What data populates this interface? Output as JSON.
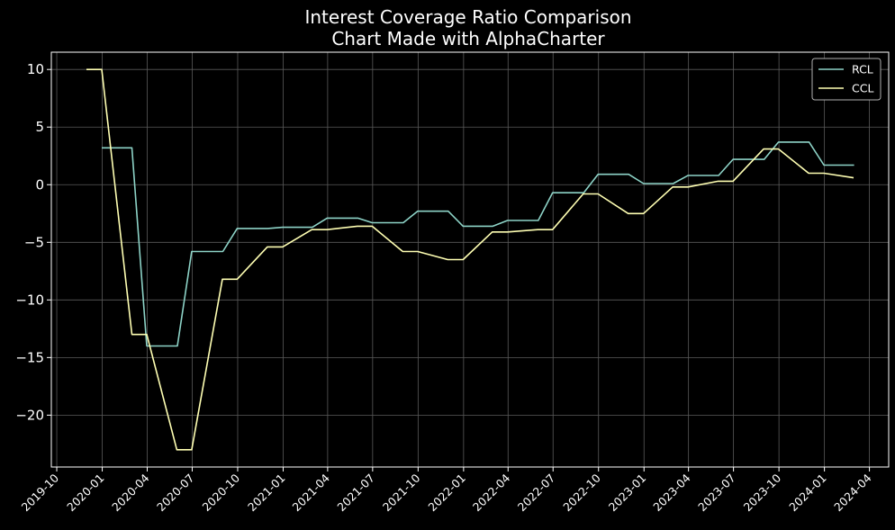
{
  "chart_data": {
    "type": "line",
    "title": "Interest Coverage Ratio Comparison",
    "subtitle": "Chart Made with AlphaCharter",
    "xlabel": "",
    "ylabel": "",
    "x_range": [
      "2019-09-20",
      "2024-05-10"
    ],
    "ylim": [
      -24.5,
      11.5
    ],
    "yticks": [
      10,
      5,
      0,
      -5,
      -10,
      -15,
      -20
    ],
    "ytick_labels": [
      "10",
      "5",
      "0",
      "−5",
      "−10",
      "−15",
      "−20"
    ],
    "xticks": [
      "2019-10-01",
      "2020-01-01",
      "2020-04-01",
      "2020-07-01",
      "2020-10-01",
      "2021-01-01",
      "2021-04-01",
      "2021-07-01",
      "2021-10-01",
      "2022-01-01",
      "2022-04-01",
      "2022-07-01",
      "2022-10-01",
      "2023-01-01",
      "2023-04-01",
      "2023-07-01",
      "2023-10-01",
      "2024-01-01",
      "2024-04-01"
    ],
    "xtick_labels": [
      "2019-10",
      "2020-01",
      "2020-04",
      "2020-07",
      "2020-10",
      "2021-01",
      "2021-04",
      "2021-07",
      "2021-10",
      "2022-01",
      "2022-04",
      "2022-07",
      "2022-10",
      "2023-01",
      "2023-04",
      "2023-07",
      "2023-10",
      "2024-01",
      "2024-04"
    ],
    "grid": true,
    "legend_position": "upper-right",
    "series": [
      {
        "name": "RCL",
        "color": "#8dd3c7",
        "points": [
          [
            "2019-12-31",
            3.2
          ],
          [
            "2020-03-01",
            3.2
          ],
          [
            "2020-03-31",
            -14.0
          ],
          [
            "2020-06-01",
            -14.0
          ],
          [
            "2020-06-30",
            -5.8
          ],
          [
            "2020-09-01",
            -5.8
          ],
          [
            "2020-09-30",
            -3.8
          ],
          [
            "2020-12-01",
            -3.8
          ],
          [
            "2020-12-31",
            -3.7
          ],
          [
            "2021-03-01",
            -3.7
          ],
          [
            "2021-03-31",
            -2.9
          ],
          [
            "2021-06-01",
            -2.9
          ],
          [
            "2021-06-30",
            -3.3
          ],
          [
            "2021-09-01",
            -3.3
          ],
          [
            "2021-09-30",
            -2.3
          ],
          [
            "2021-12-01",
            -2.3
          ],
          [
            "2021-12-31",
            -3.6
          ],
          [
            "2022-03-01",
            -3.6
          ],
          [
            "2022-03-31",
            -3.1
          ],
          [
            "2022-06-01",
            -3.1
          ],
          [
            "2022-06-30",
            -0.7
          ],
          [
            "2022-09-01",
            -0.7
          ],
          [
            "2022-09-30",
            0.9
          ],
          [
            "2022-12-01",
            0.9
          ],
          [
            "2022-12-31",
            0.1
          ],
          [
            "2023-03-01",
            0.1
          ],
          [
            "2023-03-31",
            0.8
          ],
          [
            "2023-06-01",
            0.8
          ],
          [
            "2023-06-30",
            2.2
          ],
          [
            "2023-09-01",
            2.2
          ],
          [
            "2023-09-30",
            3.7
          ],
          [
            "2023-12-01",
            3.7
          ],
          [
            "2023-12-31",
            1.7
          ],
          [
            "2024-03-01",
            1.7
          ]
        ]
      },
      {
        "name": "CCL",
        "color": "#ffffb3",
        "points": [
          [
            "2019-11-30",
            10.0
          ],
          [
            "2019-12-31",
            10.0
          ],
          [
            "2020-03-01",
            -13.0
          ],
          [
            "2020-03-31",
            -13.0
          ],
          [
            "2020-05-31",
            -23.0
          ],
          [
            "2020-06-30",
            -23.0
          ],
          [
            "2020-08-31",
            -8.2
          ],
          [
            "2020-09-30",
            -8.2
          ],
          [
            "2020-11-30",
            -5.4
          ],
          [
            "2020-12-31",
            -5.4
          ],
          [
            "2021-02-28",
            -3.9
          ],
          [
            "2021-03-31",
            -3.9
          ],
          [
            "2021-05-31",
            -3.6
          ],
          [
            "2021-06-30",
            -3.6
          ],
          [
            "2021-08-31",
            -5.8
          ],
          [
            "2021-09-30",
            -5.8
          ],
          [
            "2021-11-30",
            -6.5
          ],
          [
            "2021-12-31",
            -6.5
          ],
          [
            "2022-02-28",
            -4.1
          ],
          [
            "2022-03-31",
            -4.1
          ],
          [
            "2022-05-31",
            -3.9
          ],
          [
            "2022-06-30",
            -3.9
          ],
          [
            "2022-08-31",
            -0.8
          ],
          [
            "2022-09-30",
            -0.8
          ],
          [
            "2022-11-30",
            -2.5
          ],
          [
            "2022-12-31",
            -2.5
          ],
          [
            "2023-02-28",
            -0.2
          ],
          [
            "2023-03-31",
            -0.2
          ],
          [
            "2023-05-31",
            0.3
          ],
          [
            "2023-06-30",
            0.3
          ],
          [
            "2023-08-31",
            3.1
          ],
          [
            "2023-09-30",
            3.1
          ],
          [
            "2023-11-30",
            1.0
          ],
          [
            "2023-12-31",
            1.0
          ],
          [
            "2024-02-29",
            0.6
          ]
        ]
      }
    ]
  },
  "style": {
    "background": "#000000",
    "axis_color": "#ffffff",
    "grid_color": "#5a5a5a",
    "legend_bg": "#000000",
    "legend_border": "#b0b0b0"
  }
}
